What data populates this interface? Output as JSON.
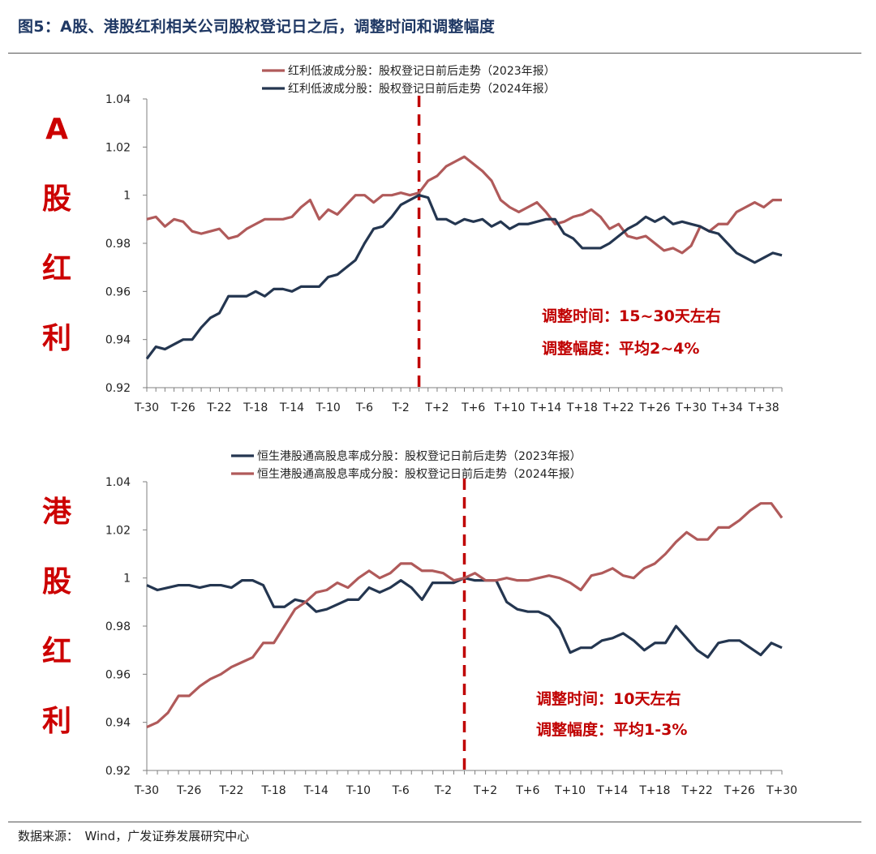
{
  "figure_title": "图5：A股、港股红利相关公司股权登记日之后，调整时间和调整幅度",
  "source": "数据来源：　Wind，广发证券发展研究中心",
  "side_labels": {
    "top": [
      "A",
      "股",
      "红",
      "利"
    ],
    "bottom": [
      "港",
      "股",
      "红",
      "利"
    ]
  },
  "colors": {
    "red_series": "#b05a5a",
    "navy_series": "#243650",
    "dashed_line": "#c00000",
    "annotation": "#c00000"
  },
  "chart_data": [
    {
      "type": "line",
      "x": [
        "T-30",
        "T-29",
        "T-28",
        "T-27",
        "T-26",
        "T-25",
        "T-24",
        "T-23",
        "T-22",
        "T-21",
        "T-20",
        "T-19",
        "T-18",
        "T-17",
        "T-16",
        "T-15",
        "T-14",
        "T-13",
        "T-12",
        "T-11",
        "T-10",
        "T-9",
        "T-8",
        "T-7",
        "T-6",
        "T-5",
        "T-4",
        "T-3",
        "T-2",
        "T-1",
        "T0",
        "T+1",
        "T+2",
        "T+3",
        "T+4",
        "T+5",
        "T+6",
        "T+7",
        "T+8",
        "T+9",
        "T+10",
        "T+11",
        "T+12",
        "T+13",
        "T+14",
        "T+15",
        "T+16",
        "T+17",
        "T+18",
        "T+19",
        "T+20",
        "T+21",
        "T+22",
        "T+23",
        "T+24",
        "T+25",
        "T+26",
        "T+27",
        "T+28",
        "T+29",
        "T+30",
        "T+31",
        "T+32",
        "T+33",
        "T+34",
        "T+35",
        "T+36",
        "T+37",
        "T+38",
        "T+39",
        "T+40"
      ],
      "x_tick_labels": [
        "T-30",
        "T-26",
        "T-22",
        "T-18",
        "T-14",
        "T-10",
        "T-6",
        "T-2",
        "T+2",
        "T+6",
        "T+10",
        "T+14",
        "T+18",
        "T+22",
        "T+26",
        "T+30",
        "T+34",
        "T+38"
      ],
      "ylim": [
        0.92,
        1.04
      ],
      "y_ticks": [
        "0.92",
        "0.94",
        "0.96",
        "0.98",
        "1",
        "1.02",
        "1.04"
      ],
      "event_index": 30,
      "series": [
        {
          "name": "红利低波成分股：股权登记日前后走势（2023年报）",
          "color": "#b05a5a",
          "values": [
            0.99,
            0.991,
            0.987,
            0.99,
            0.989,
            0.985,
            0.984,
            0.985,
            0.986,
            0.982,
            0.983,
            0.986,
            0.988,
            0.99,
            0.99,
            0.99,
            0.991,
            0.995,
            0.998,
            0.99,
            0.994,
            0.992,
            0.996,
            1.0,
            1.0,
            0.997,
            1.0,
            1.0,
            1.001,
            1.0,
            1.001,
            1.006,
            1.008,
            1.012,
            1.014,
            1.016,
            1.013,
            1.01,
            1.006,
            0.998,
            0.995,
            0.993,
            0.995,
            0.997,
            0.993,
            0.988,
            0.989,
            0.991,
            0.992,
            0.994,
            0.991,
            0.986,
            0.988,
            0.983,
            0.982,
            0.983,
            0.98,
            0.977,
            0.978,
            0.976,
            0.979,
            0.987,
            0.985,
            0.988,
            0.988,
            0.993,
            0.995,
            0.997,
            0.995,
            0.998,
            0.998
          ]
        },
        {
          "name": "红利低波成分股：股权登记日前后走势（2024年报）",
          "color": "#243650",
          "values": [
            0.932,
            0.937,
            0.936,
            0.938,
            0.94,
            0.94,
            0.945,
            0.949,
            0.951,
            0.958,
            0.958,
            0.958,
            0.96,
            0.958,
            0.961,
            0.961,
            0.96,
            0.962,
            0.962,
            0.962,
            0.966,
            0.967,
            0.97,
            0.973,
            0.98,
            0.986,
            0.987,
            0.991,
            0.996,
            0.998,
            1.0,
            0.999,
            0.99,
            0.99,
            0.988,
            0.99,
            0.989,
            0.99,
            0.987,
            0.989,
            0.986,
            0.988,
            0.988,
            0.989,
            0.99,
            0.99,
            0.984,
            0.982,
            0.978,
            0.978,
            0.978,
            0.98,
            0.983,
            0.986,
            0.988,
            0.991,
            0.989,
            0.991,
            0.988,
            0.989,
            0.988,
            0.987,
            0.985,
            0.984,
            0.98,
            0.976,
            0.974,
            0.972,
            0.974,
            0.976,
            0.975
          ]
        }
      ],
      "annotations": [
        "调整时间：15~30天左右",
        "调整幅度：平均2~4%"
      ]
    },
    {
      "type": "line",
      "x": [
        "T-30",
        "T-29",
        "T-28",
        "T-27",
        "T-26",
        "T-25",
        "T-24",
        "T-23",
        "T-22",
        "T-21",
        "T-20",
        "T-19",
        "T-18",
        "T-17",
        "T-16",
        "T-15",
        "T-14",
        "T-13",
        "T-12",
        "T-11",
        "T-10",
        "T-9",
        "T-8",
        "T-7",
        "T-6",
        "T-5",
        "T-4",
        "T-3",
        "T-2",
        "T-1",
        "T0",
        "T+1",
        "T+2",
        "T+3",
        "T+4",
        "T+5",
        "T+6",
        "T+7",
        "T+8",
        "T+9",
        "T+10",
        "T+11",
        "T+12",
        "T+13",
        "T+14",
        "T+15",
        "T+16",
        "T+17",
        "T+18",
        "T+19",
        "T+20",
        "T+21",
        "T+22",
        "T+23",
        "T+24",
        "T+25",
        "T+26",
        "T+27",
        "T+28",
        "T+29",
        "T+30"
      ],
      "x_tick_labels": [
        "T-30",
        "T-26",
        "T-22",
        "T-18",
        "T-14",
        "T-10",
        "T-6",
        "T-2",
        "T+2",
        "T+6",
        "T+10",
        "T+14",
        "T+18",
        "T+22",
        "T+26",
        "T+30"
      ],
      "ylim": [
        0.92,
        1.04
      ],
      "y_ticks": [
        "0.92",
        "0.94",
        "0.96",
        "0.98",
        "1",
        "1.02",
        "1.04"
      ],
      "event_index": 30,
      "series": [
        {
          "name": "恒生港股通高股息率成分股：股权登记日前后走势（2023年报）",
          "color": "#243650",
          "values": [
            0.997,
            0.995,
            0.996,
            0.997,
            0.997,
            0.996,
            0.997,
            0.997,
            0.996,
            0.999,
            0.999,
            0.997,
            0.988,
            0.988,
            0.991,
            0.99,
            0.986,
            0.987,
            0.989,
            0.991,
            0.991,
            0.996,
            0.994,
            0.996,
            0.999,
            0.996,
            0.991,
            0.998,
            0.998,
            0.998,
            1.0,
            0.999,
            0.999,
            0.999,
            0.99,
            0.987,
            0.986,
            0.986,
            0.984,
            0.979,
            0.969,
            0.971,
            0.971,
            0.974,
            0.975,
            0.977,
            0.974,
            0.97,
            0.973,
            0.973,
            0.98,
            0.975,
            0.97,
            0.967,
            0.973,
            0.974,
            0.974,
            0.971,
            0.968,
            0.973,
            0.971
          ]
        },
        {
          "name": "恒生港股通高股息率成分股：股权登记日前后走势（2024年报）",
          "color": "#b05a5a",
          "values": [
            0.938,
            0.94,
            0.944,
            0.951,
            0.951,
            0.955,
            0.958,
            0.96,
            0.963,
            0.965,
            0.967,
            0.973,
            0.973,
            0.98,
            0.987,
            0.99,
            0.994,
            0.995,
            0.998,
            0.996,
            1.0,
            1.003,
            1.0,
            1.002,
            1.006,
            1.006,
            1.003,
            1.003,
            1.002,
            0.999,
            1.0,
            1.002,
            0.999,
            0.999,
            1.0,
            0.999,
            0.999,
            1.0,
            1.001,
            1.0,
            0.998,
            0.995,
            1.001,
            1.002,
            1.004,
            1.001,
            1.0,
            1.004,
            1.006,
            1.01,
            1.015,
            1.019,
            1.016,
            1.016,
            1.021,
            1.021,
            1.024,
            1.028,
            1.031,
            1.031,
            1.025
          ]
        }
      ],
      "annotations": [
        "调整时间：10天左右",
        "调整幅度：平均1-3%"
      ]
    }
  ]
}
